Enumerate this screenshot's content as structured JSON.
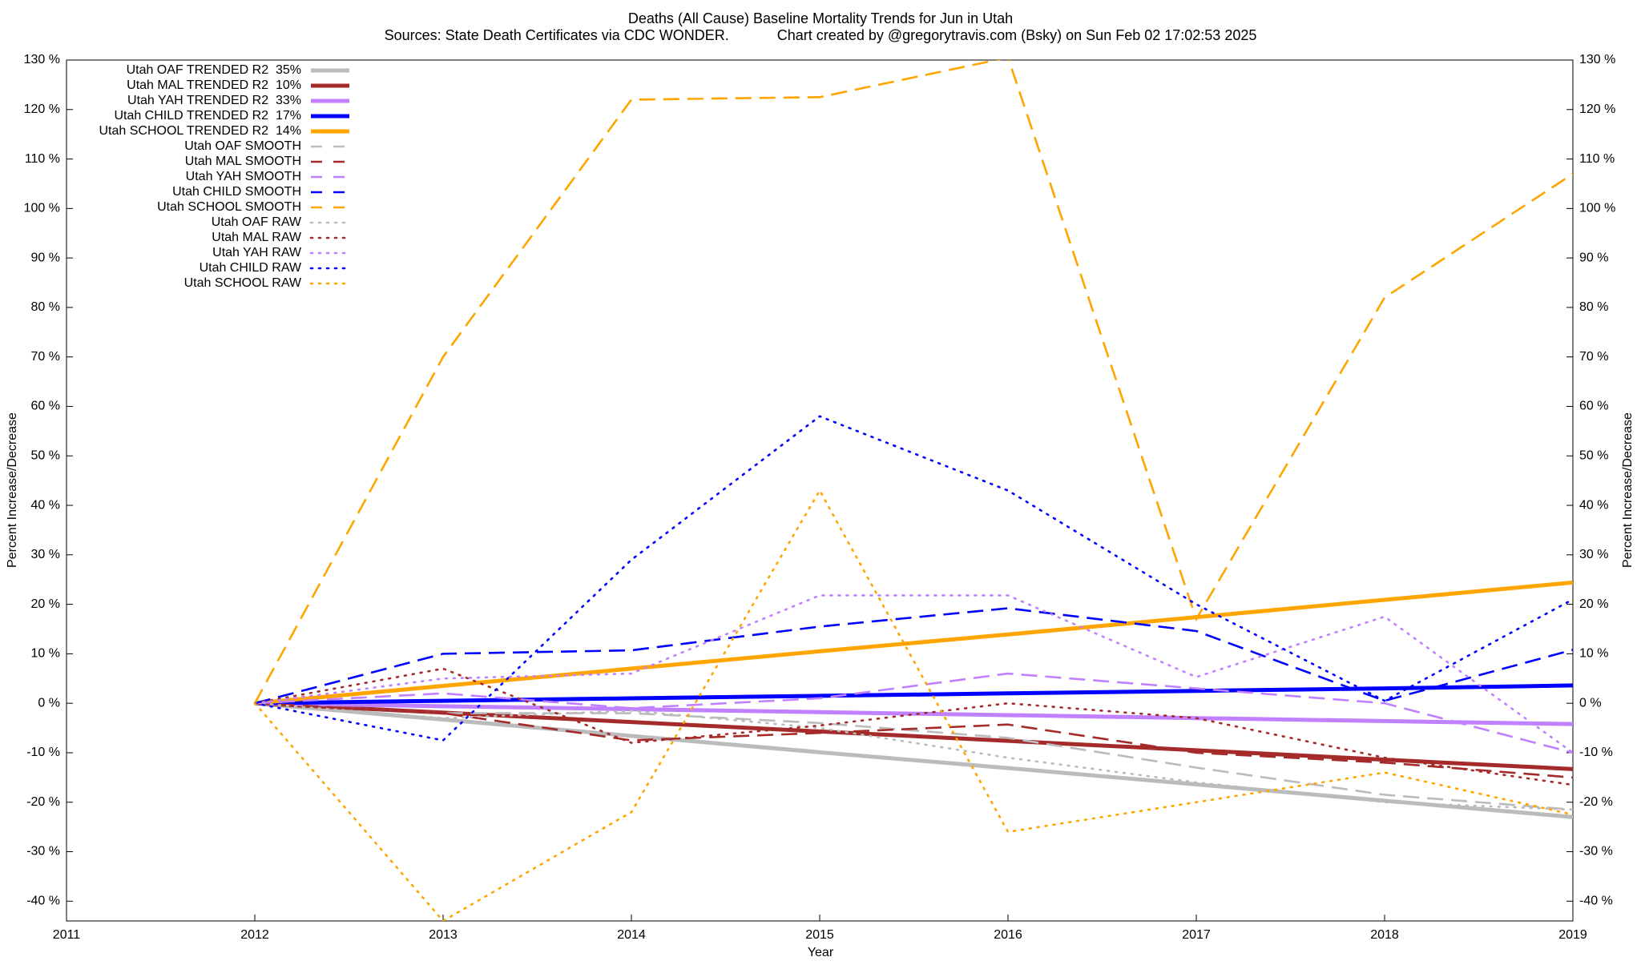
{
  "chart_data": {
    "type": "line",
    "title": "Deaths (All Cause)  Baseline Mortality Trends for Jun in Utah",
    "subtitle": "Sources: State Death Certificates via CDC WONDER.            Chart created by @gregorytravis.com (Bsky) on Sun Feb 02 17:02:53 2025",
    "xlabel": "Year",
    "ylabel": "Percent Increase/Decrease",
    "xlim": [
      2011,
      2019
    ],
    "xticks": [
      2011,
      2012,
      2013,
      2014,
      2015,
      2016,
      2017,
      2018,
      2019
    ],
    "ylim": [
      -44,
      130
    ],
    "yticks": [
      {
        "value": -40,
        "label": "-40 %"
      },
      {
        "value": -30,
        "label": "-30 %"
      },
      {
        "value": -20,
        "label": "-20 %"
      },
      {
        "value": -10,
        "label": "-10 %"
      },
      {
        "value": 0,
        "label": "0 %"
      },
      {
        "value": 10,
        "label": "10 %"
      },
      {
        "value": 20,
        "label": "20 %"
      },
      {
        "value": 30,
        "label": "30 %"
      },
      {
        "value": 40,
        "label": "40 %"
      },
      {
        "value": 50,
        "label": "50 %"
      },
      {
        "value": 60,
        "label": "60 %"
      },
      {
        "value": 70,
        "label": "70 %"
      },
      {
        "value": 80,
        "label": "80 %"
      },
      {
        "value": 90,
        "label": "90 %"
      },
      {
        "value": 100,
        "label": "100 %"
      },
      {
        "value": 110,
        "label": "110 %"
      },
      {
        "value": 120,
        "label": "120 %"
      },
      {
        "value": 130,
        "label": "130 %"
      }
    ],
    "grid": false,
    "legend": "top-left",
    "x": [
      2012,
      2013,
      2014,
      2015,
      2016,
      2017,
      2018,
      2019
    ],
    "series": [
      {
        "name": "Utah OAF TRENDED R2  35%",
        "color": "#bbbbbb",
        "style": "solid",
        "values": [
          0,
          -3.3,
          -6.6,
          -9.9,
          -13.1,
          -16.4,
          -19.7,
          -23
        ]
      },
      {
        "name": "Utah MAL TRENDED R2  10%",
        "color": "#a52a2a",
        "style": "solid",
        "values": [
          0,
          -1.9,
          -3.8,
          -5.7,
          -7.6,
          -9.5,
          -11.4,
          -13.3
        ]
      },
      {
        "name": "Utah YAH TRENDED R2  33%",
        "color": "#c080ff",
        "style": "solid",
        "values": [
          0,
          -0.6,
          -1.2,
          -1.8,
          -2.4,
          -3,
          -3.6,
          -4.2
        ]
      },
      {
        "name": "Utah CHILD TRENDED R2  17%",
        "color": "#0000ff",
        "style": "solid",
        "values": [
          0,
          0.5,
          1,
          1.5,
          2,
          2.5,
          3,
          3.6
        ]
      },
      {
        "name": "Utah SCHOOL TRENDED R2  14%",
        "color": "#ffa500",
        "style": "solid",
        "values": [
          0,
          3.5,
          7,
          10.5,
          13.9,
          17.4,
          20.9,
          24.4
        ]
      },
      {
        "name": "Utah OAF SMOOTH",
        "color": "#bbbbbb",
        "style": "dashed",
        "values": [
          0,
          -2,
          -2,
          -4,
          -7,
          -13,
          -18.5,
          -21.5
        ]
      },
      {
        "name": "Utah MAL SMOOTH",
        "color": "#a52a2a",
        "style": "dashed",
        "values": [
          0,
          -2,
          -7.5,
          -6,
          -4.3,
          -10,
          -12,
          -15
        ]
      },
      {
        "name": "Utah YAH SMOOTH",
        "color": "#c080ff",
        "style": "dashed",
        "values": [
          0,
          2,
          -1,
          1,
          6,
          3,
          0,
          -10
        ]
      },
      {
        "name": "Utah CHILD SMOOTH",
        "color": "#0000ff",
        "style": "dashed",
        "values": [
          0,
          10,
          10.7,
          15.5,
          19.2,
          14.6,
          0.5,
          10.8
        ]
      },
      {
        "name": "Utah SCHOOL SMOOTH",
        "color": "#ffa500",
        "style": "dashed",
        "values": [
          0,
          70,
          122,
          122.5,
          130.5,
          17,
          82,
          107
        ]
      },
      {
        "name": "Utah OAF RAW",
        "color": "#bbbbbb",
        "style": "dotted",
        "values": [
          0,
          -3,
          -1.5,
          -5,
          -11,
          -16,
          -20,
          -21.5
        ]
      },
      {
        "name": "Utah MAL RAW",
        "color": "#a52a2a",
        "style": "dotted",
        "values": [
          0,
          7,
          -8,
          -4.5,
          0,
          -3,
          -11,
          -16.5
        ]
      },
      {
        "name": "Utah YAH RAW",
        "color": "#c080ff",
        "style": "dotted",
        "values": [
          0,
          5,
          6,
          21.8,
          21.8,
          5.3,
          17.5,
          -10
        ]
      },
      {
        "name": "Utah CHILD RAW",
        "color": "#0000ff",
        "style": "dotted",
        "values": [
          0,
          -7.5,
          29,
          58,
          43,
          20,
          0.5,
          21
        ]
      },
      {
        "name": "Utah SCHOOL RAW",
        "color": "#ffa500",
        "style": "dotted",
        "values": [
          0,
          -44,
          -22,
          43,
          -26,
          -20,
          -14,
          -22.5
        ]
      }
    ]
  }
}
